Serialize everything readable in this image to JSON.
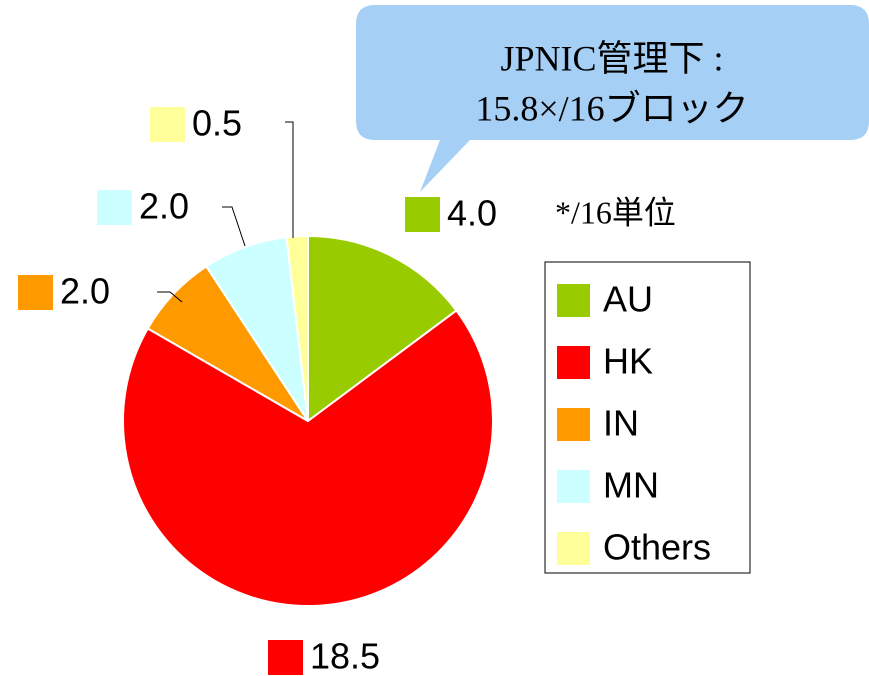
{
  "chart_data": {
    "type": "pie",
    "categories": [
      "AU",
      "HK",
      "IN",
      "MN",
      "Others"
    ],
    "values": [
      4.0,
      18.5,
      2.0,
      2.0,
      0.5
    ],
    "value_labels": [
      "4.0",
      "18.5",
      "2.0",
      "2.0",
      "0.5"
    ],
    "colors": [
      "#99cc00",
      "#ff0000",
      "#ff9900",
      "#ccffff",
      "#ffff99"
    ],
    "legend": "right",
    "annotations": [
      "JPNIC管理下 :",
      "15.8×/16ブロック",
      "*/16単位"
    ]
  }
}
